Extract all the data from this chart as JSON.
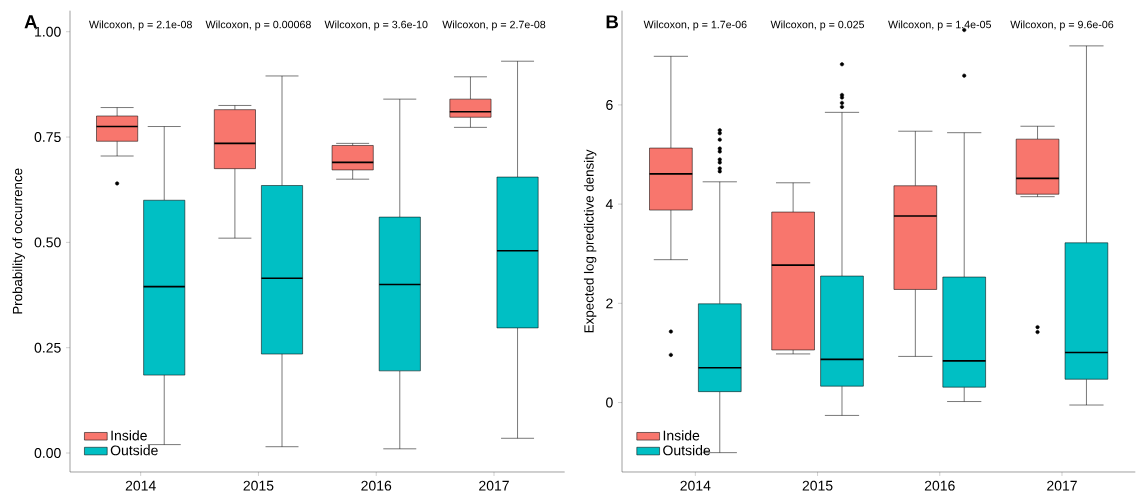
{
  "chart_data": [
    {
      "type": "box",
      "ylabel": "Probability of occurrence",
      "categories": [
        "2014",
        "2015",
        "2016",
        "2017"
      ],
      "ylim": [
        -0.045,
        1.05
      ],
      "yticks": [
        {
          "value": 0,
          "label": "0.00"
        },
        {
          "value": 0.25,
          "label": "0.25"
        },
        {
          "value": 0.5,
          "label": "0.50"
        },
        {
          "value": 0.75,
          "label": "0.75"
        },
        {
          "value": 1,
          "label": "1.00"
        }
      ],
      "legend": "bottom left",
      "series": [
        {
          "name": "Inside",
          "color": "#f8766d",
          "boxes": [
            {
              "low": 0.705,
              "q1": 0.74,
              "median": 0.775,
              "q3": 0.8,
              "high": 0.82,
              "outliers": [
                0.64
              ]
            },
            {
              "low": 0.51,
              "q1": 0.675,
              "median": 0.735,
              "q3": 0.815,
              "high": 0.825
            },
            {
              "low": 0.65,
              "q1": 0.672,
              "median": 0.69,
              "q3": 0.73,
              "high": 0.735
            },
            {
              "low": 0.773,
              "q1": 0.797,
              "median": 0.81,
              "q3": 0.84,
              "high": 0.893
            }
          ]
        },
        {
          "name": "Outside",
          "color": "#00bfc4",
          "boxes": [
            {
              "low": 0.02,
              "q1": 0.185,
              "median": 0.395,
              "q3": 0.6,
              "high": 0.775
            },
            {
              "low": 0.015,
              "q1": 0.235,
              "median": 0.415,
              "q3": 0.635,
              "high": 0.895
            },
            {
              "low": 0.01,
              "q1": 0.195,
              "median": 0.4,
              "q3": 0.56,
              "high": 0.84
            },
            {
              "low": 0.035,
              "q1": 0.297,
              "median": 0.48,
              "q3": 0.655,
              "high": 0.93
            }
          ]
        }
      ],
      "annotations": [
        "A",
        "Wilcoxon, p = 2.1e-08",
        "Wilcoxon, p = 0.00068",
        "Wilcoxon, p = 3.6e-10",
        "Wilcoxon, p = 2.7e-08"
      ]
    },
    {
      "type": "box",
      "ylabel": "Expected log predictive density",
      "categories": [
        "2014",
        "2015",
        "2016",
        "2017"
      ],
      "ylim": [
        -1.4,
        7.9
      ],
      "yticks": [
        0,
        2,
        4,
        6
      ],
      "legend": "bottom left",
      "series": [
        {
          "name": "Inside",
          "color": "#f8766d",
          "boxes": [
            {
              "low": 2.88,
              "q1": 3.88,
              "median": 4.61,
              "q3": 5.13,
              "high": 6.98,
              "outliers": [
                1.43,
                0.96
              ]
            },
            {
              "low": 0.98,
              "q1": 1.06,
              "median": 2.77,
              "q3": 3.84,
              "high": 4.43
            },
            {
              "low": 0.93,
              "q1": 2.28,
              "median": 3.76,
              "q3": 4.37,
              "high": 5.47
            },
            {
              "low": 4.15,
              "q1": 4.2,
              "median": 4.52,
              "q3": 5.31,
              "high": 5.57,
              "outliers": [
                1.52,
                1.42
              ]
            }
          ]
        },
        {
          "name": "Outside",
          "color": "#00bfc4",
          "boxes": [
            {
              "low": -1.01,
              "q1": 0.22,
              "median": 0.7,
              "q3": 1.99,
              "high": 4.45,
              "outliers": [
                5.49,
                5.43,
                5.3,
                5.12,
                5.06,
                4.9,
                4.84,
                4.72,
                4.66
              ]
            },
            {
              "low": -0.26,
              "q1": 0.33,
              "median": 0.87,
              "q3": 2.55,
              "high": 5.85,
              "outliers": [
                6.82,
                6.2,
                6.15,
                6.04,
                5.96
              ]
            },
            {
              "low": 0.02,
              "q1": 0.31,
              "median": 0.84,
              "q3": 2.53,
              "high": 5.44,
              "outliers": [
                7.51,
                6.59
              ]
            },
            {
              "low": -0.05,
              "q1": 0.47,
              "median": 1.01,
              "q3": 3.22,
              "high": 7.19
            }
          ]
        }
      ],
      "annotations": [
        "B",
        "Wilcoxon, p = 1.7e-06",
        "Wilcoxon, p = 0.025",
        "Wilcoxon, p = 1.4e-05",
        "Wilcoxon, p = 9.6e-06"
      ]
    }
  ]
}
